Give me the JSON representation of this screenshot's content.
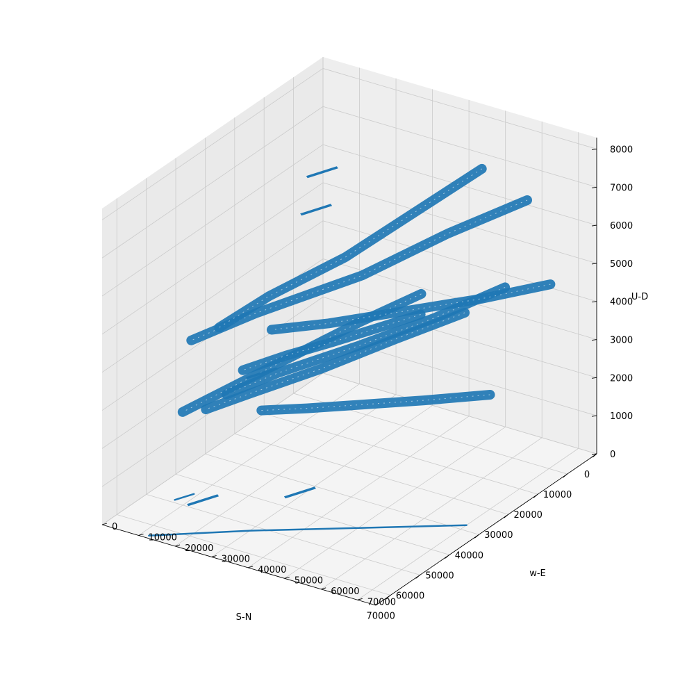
{
  "chart_data": {
    "type": "surface3d",
    "title": "",
    "axes": {
      "x": {
        "label": "S-N",
        "ticks": [
          0,
          10000,
          20000,
          30000,
          40000,
          50000,
          60000,
          70000
        ],
        "range": [
          0,
          75000
        ]
      },
      "y": {
        "label": "w-E",
        "ticks": [
          0,
          10000,
          20000,
          30000,
          40000,
          50000,
          60000,
          70000
        ],
        "range": [
          0,
          75000
        ]
      },
      "z": {
        "label": "U-D",
        "ticks": [
          0,
          1000,
          2000,
          3000,
          4000,
          5000,
          6000,
          7000,
          8000
        ],
        "range": [
          0,
          8300
        ]
      }
    },
    "grid": true,
    "pane_colors": {
      "left": "#eaeaea",
      "right": "#eeeeee",
      "floor": "#f4f4f4"
    },
    "series": [
      {
        "color": "#1f77b4",
        "fault_traces": [
          {
            "x": [
              5000,
              22000,
              40000,
              60000,
              72000
            ],
            "y": [
              60000,
              52000,
              43000,
              30000,
              22000
            ],
            "z": [
              6500,
              6300,
              5900,
              5600,
              5300
            ]
          },
          {
            "x": [
              8000,
              25000,
              42000,
              58000,
              70000
            ],
            "y": [
              50000,
              45000,
              40000,
              32000,
              28000
            ],
            "z": [
              7200,
              6800,
              6400,
              6000,
              5700
            ]
          },
          {
            "x": [
              15000,
              30000,
              45000,
              60000,
              70000
            ],
            "y": [
              62000,
              55000,
              46000,
              36000,
              30000
            ],
            "z": [
              4800,
              4600,
              4400,
              4200,
              4000
            ]
          },
          {
            "x": [
              20000,
              35000,
              50000,
              65000,
              72000
            ],
            "y": [
              55000,
              48000,
              40000,
              32000,
              26000
            ],
            "z": [
              4200,
              4100,
              3900,
              3800,
              3600
            ]
          },
          {
            "x": [
              10000,
              25000,
              40000,
              55000,
              70000
            ],
            "y": [
              35000,
              30000,
              26000,
              22000,
              18000
            ],
            "z": [
              3600,
              3500,
              3400,
              3300,
              3200
            ]
          },
          {
            "x": [
              12000,
              28000,
              44000,
              60000,
              72000
            ],
            "y": [
              72000,
              66000,
              58000,
              50000,
              44000
            ],
            "z": [
              5000,
              5300,
              5600,
              5900,
              6200
            ]
          },
          {
            "x": [
              30000,
              40000,
              50000,
              60000,
              68000
            ],
            "y": [
              70000,
              60000,
              52000,
              44000,
              38000
            ],
            "z": [
              3000,
              3100,
              3300,
              3500,
              3700
            ]
          },
          {
            "x": [
              4000,
              15000,
              28000,
              40000,
              52000
            ],
            "y": [
              30000,
              28000,
              25000,
              22000,
              20000
            ],
            "z": [
              2600,
              2800,
              3000,
              3200,
              3400
            ]
          }
        ],
        "floor_traces": [
          {
            "x": [
              38000,
              50000,
              62000,
              74000
            ],
            "y": [
              70000,
              50000,
              30000,
              12000
            ],
            "z": [
              0,
              0,
              0,
              0
            ]
          },
          {
            "x": [
              55000,
              57000,
              59000
            ],
            "y": [
              9000,
              8000,
              7000
            ],
            "z": [
              0,
              0,
              0
            ]
          }
        ],
        "isolated_patches": [
          {
            "x": 3000,
            "y": 2000,
            "z": 5500
          },
          {
            "x": 10000,
            "y": 6000,
            "z": 5000
          },
          {
            "x": 26000,
            "y": 4000,
            "z": 1500
          },
          {
            "x": 72000,
            "y": 25000,
            "z": 1200
          },
          {
            "x": 70000,
            "y": 50000,
            "z": 2000
          }
        ]
      }
    ]
  }
}
